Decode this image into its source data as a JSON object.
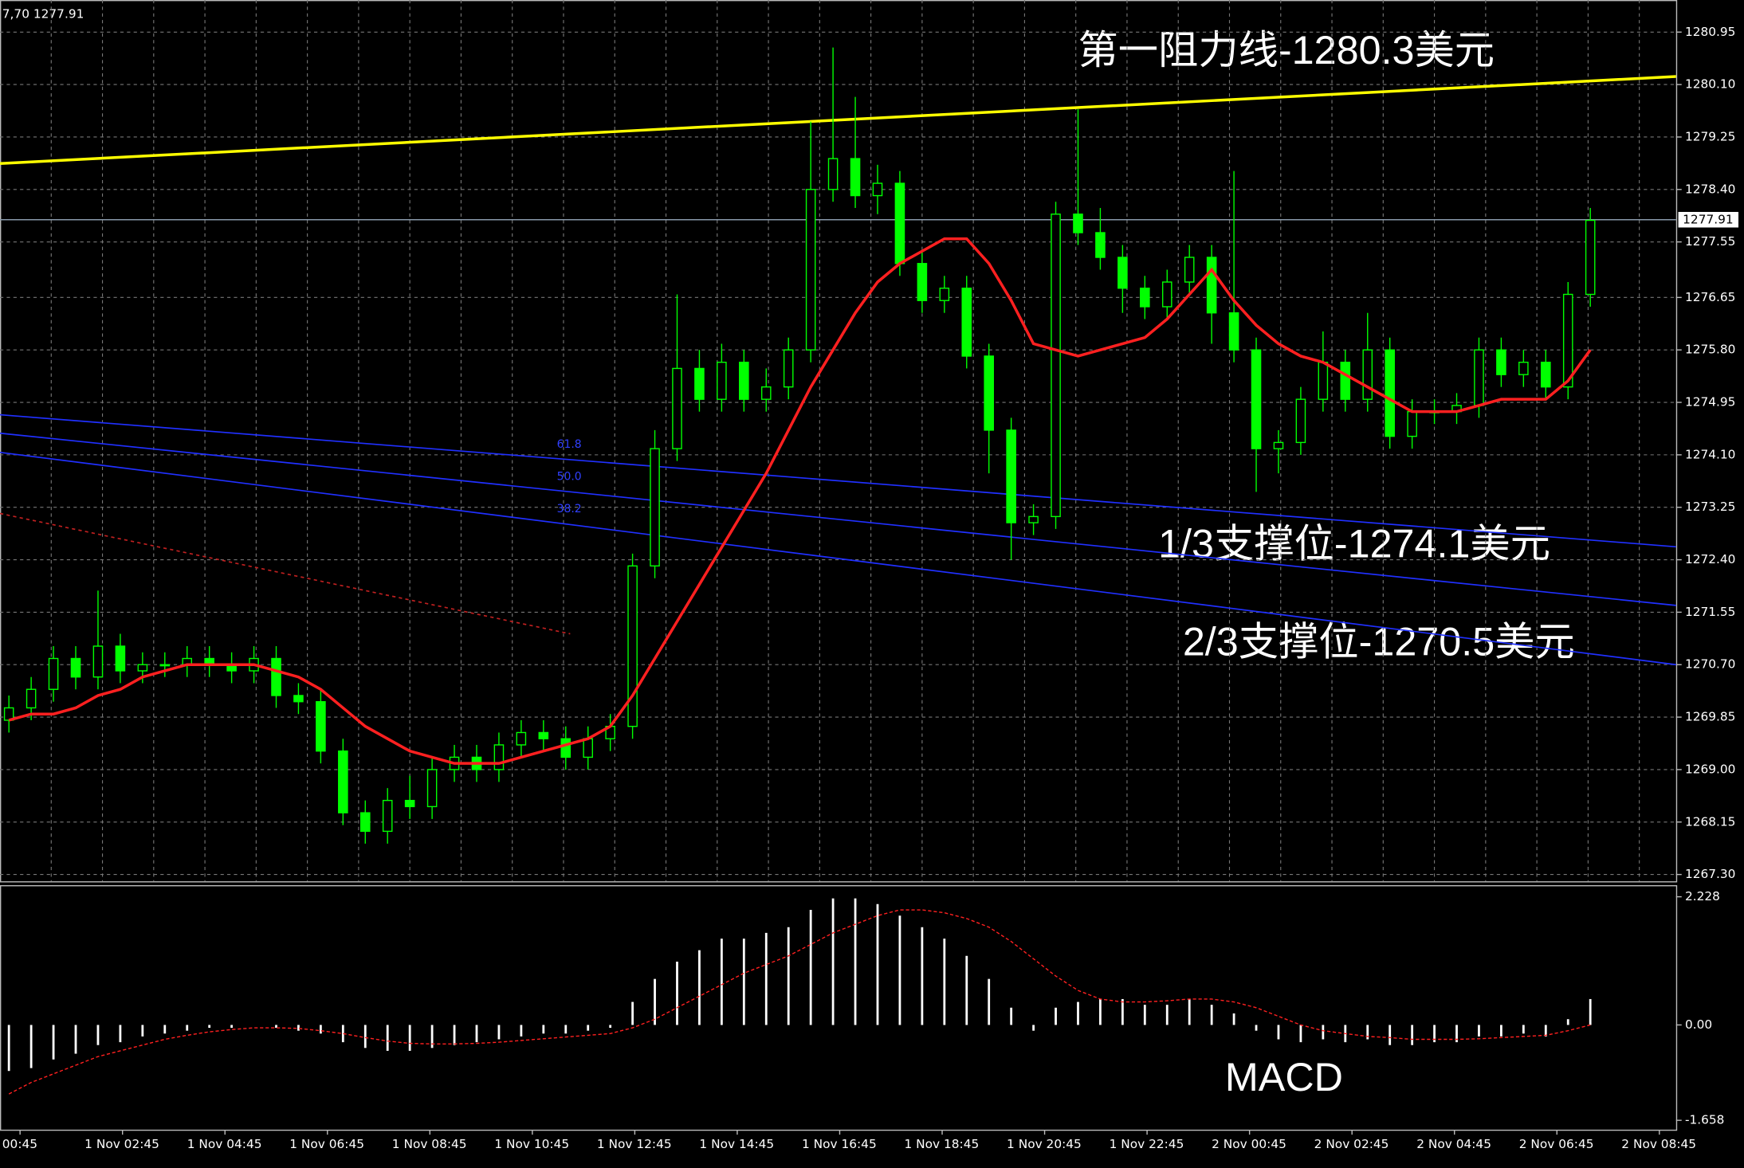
{
  "chart_data": {
    "type": "candlestick",
    "header": "7,70 1277.91",
    "last_price": {
      "value": 1277.91,
      "label": "1277.91"
    },
    "ylim": [
      1267.19,
      1281.47
    ],
    "yticks": [
      1280.95,
      {
        "value": 1280.1,
        "label": "1280.10"
      },
      1279.25,
      {
        "value": 1278.4,
        "label": "1278.40"
      },
      1277.55,
      1276.65,
      {
        "value": 1275.8,
        "label": "1275.80"
      },
      1274.95,
      {
        "value": 1274.1,
        "label": "1274.10"
      },
      1273.25,
      {
        "value": 1272.4,
        "label": "1272.40"
      },
      1271.55,
      {
        "value": 1270.7,
        "label": "1270.70"
      },
      1269.85,
      {
        "value": 1269,
        "label": "1269.00"
      },
      1268.15,
      {
        "value": 1267.3,
        "label": "1267.30"
      }
    ],
    "grid": true,
    "xlabels": [
      "00:45",
      "1 Nov 02:45",
      "1 Nov 04:45",
      "1 Nov 06:45",
      "1 Nov 08:45",
      "1 Nov 10:45",
      "1 Nov 12:45",
      "1 Nov 14:45",
      "1 Nov 16:45",
      "1 Nov 18:45",
      "1 Nov 20:45",
      "1 Nov 22:45",
      "2 Nov 00:45",
      "2 Nov 02:45",
      "2 Nov 04:45",
      "2 Nov 06:45",
      "2 Nov 08:45"
    ],
    "candle_color": "#00ff00",
    "open": [
      1269.8,
      1270.0,
      1270.3,
      1270.8,
      1270.5,
      1271.0,
      1270.6,
      1270.7,
      1270.7,
      1270.8,
      1270.7,
      1270.6,
      1270.8,
      1270.2,
      1270.1,
      1269.3,
      1268.3,
      1268.0,
      1268.5,
      1268.4,
      1269.0,
      1269.2,
      1269.0,
      1269.4,
      1269.6,
      1269.5,
      1269.2,
      1269.5,
      1269.7,
      1272.3,
      1274.2,
      1275.5,
      1275.0,
      1275.6,
      1275.0,
      1275.2,
      1275.8,
      1278.4,
      1278.9,
      1278.3,
      1278.5,
      1277.2,
      1276.6,
      1276.8,
      1275.7,
      1274.5,
      1273.0,
      1273.1,
      1278.0,
      1277.7,
      1277.3,
      1276.8,
      1276.5,
      1276.9,
      1277.3,
      1276.4,
      1275.8,
      1274.2,
      1274.3,
      1275.0,
      1275.6,
      1275.0,
      1275.8,
      1274.4,
      1274.8,
      1274.8,
      1274.9,
      1275.8,
      1275.4,
      1275.6,
      1275.2,
      1276.7
    ],
    "high": [
      1270.2,
      1270.5,
      1271.0,
      1271.0,
      1271.9,
      1271.2,
      1270.9,
      1270.9,
      1271.0,
      1271.0,
      1270.9,
      1271.0,
      1271.0,
      1270.4,
      1270.3,
      1269.5,
      1268.5,
      1268.7,
      1268.9,
      1269.2,
      1269.4,
      1269.4,
      1269.6,
      1269.8,
      1269.8,
      1269.7,
      1269.7,
      1269.9,
      1272.5,
      1274.5,
      1276.7,
      1275.8,
      1275.9,
      1275.8,
      1275.5,
      1276.0,
      1279.5,
      1280.7,
      1279.9,
      1278.8,
      1278.7,
      1277.4,
      1277.0,
      1277.0,
      1275.9,
      1274.7,
      1273.3,
      1278.2,
      1279.7,
      1278.1,
      1277.5,
      1277.0,
      1277.1,
      1277.5,
      1277.5,
      1278.7,
      1276.0,
      1274.5,
      1275.2,
      1276.1,
      1275.8,
      1276.4,
      1276.0,
      1275.0,
      1275.0,
      1275.1,
      1276.0,
      1276.0,
      1275.8,
      1275.8,
      1276.9,
      1278.1
    ],
    "low": [
      1269.6,
      1269.8,
      1270.1,
      1270.3,
      1270.3,
      1270.4,
      1270.4,
      1270.5,
      1270.5,
      1270.5,
      1270.4,
      1270.4,
      1270.0,
      1269.9,
      1269.1,
      1268.1,
      1267.8,
      1267.8,
      1268.2,
      1268.2,
      1268.8,
      1268.8,
      1268.8,
      1269.2,
      1269.3,
      1269.0,
      1269.0,
      1269.3,
      1269.5,
      1272.1,
      1274.0,
      1274.8,
      1274.8,
      1274.8,
      1274.8,
      1275.0,
      1275.6,
      1278.2,
      1278.1,
      1278.0,
      1277.0,
      1276.4,
      1276.4,
      1275.5,
      1273.8,
      1272.4,
      1272.8,
      1272.9,
      1277.5,
      1277.1,
      1276.4,
      1276.3,
      1276.3,
      1276.7,
      1275.9,
      1275.6,
      1273.5,
      1273.8,
      1274.1,
      1274.8,
      1274.8,
      1274.8,
      1274.2,
      1274.2,
      1274.6,
      1274.6,
      1274.7,
      1275.2,
      1275.2,
      1275.0,
      1275.0,
      1276.5
    ],
    "close": [
      1270.0,
      1270.3,
      1270.8,
      1270.5,
      1271.0,
      1270.6,
      1270.7,
      1270.7,
      1270.8,
      1270.7,
      1270.6,
      1270.8,
      1270.2,
      1270.1,
      1269.3,
      1268.3,
      1268.0,
      1268.5,
      1268.4,
      1269.0,
      1269.2,
      1269.0,
      1269.4,
      1269.6,
      1269.5,
      1269.2,
      1269.5,
      1269.7,
      1272.3,
      1274.2,
      1275.5,
      1275.0,
      1275.6,
      1275.0,
      1275.2,
      1275.8,
      1278.4,
      1278.9,
      1278.3,
      1278.5,
      1277.2,
      1276.6,
      1276.8,
      1275.7,
      1274.5,
      1273.0,
      1273.1,
      1278.0,
      1277.7,
      1277.3,
      1276.8,
      1276.5,
      1276.9,
      1277.3,
      1276.4,
      1275.8,
      1274.2,
      1274.3,
      1275.0,
      1275.6,
      1275.0,
      1275.8,
      1274.4,
      1274.8,
      1274.8,
      1274.9,
      1275.8,
      1275.4,
      1275.6,
      1275.2,
      1276.7,
      1277.9
    ],
    "ma": {
      "color": "#ff2020",
      "values": [
        1269.8,
        1269.9,
        1269.9,
        1270.0,
        1270.2,
        1270.3,
        1270.5,
        1270.6,
        1270.7,
        1270.7,
        1270.7,
        1270.7,
        1270.6,
        1270.5,
        1270.3,
        1270.0,
        1269.7,
        1269.5,
        1269.3,
        1269.2,
        1269.1,
        1269.1,
        1269.1,
        1269.2,
        1269.3,
        1269.4,
        1269.5,
        1269.7,
        1270.2,
        1270.8,
        1271.4,
        1272.0,
        1272.6,
        1273.2,
        1273.8,
        1274.5,
        1275.2,
        1275.8,
        1276.4,
        1276.9,
        1277.2,
        1277.4,
        1277.6,
        1277.6,
        1277.2,
        1276.6,
        1275.9,
        1275.8,
        1275.7,
        1275.8,
        1275.9,
        1276.0,
        1276.3,
        1276.7,
        1277.1,
        1276.6,
        1276.2,
        1275.9,
        1275.7,
        1275.6,
        1275.4,
        1275.2,
        1275.0,
        1274.8,
        1274.8,
        1274.8,
        1274.9,
        1275.0,
        1275.0,
        1275.0,
        1275.3,
        1275.8
      ]
    },
    "trend_lines": [
      {
        "color": "#ffff00",
        "values": [
          1278.82,
          1280.23
        ]
      },
      {
        "color": "#2030ff",
        "values": [
          1274.75,
          1272.61
        ]
      },
      {
        "color": "#2030ff",
        "values": [
          1274.45,
          1271.66
        ]
      },
      {
        "color": "#2030ff",
        "values": [
          1274.14,
          1270.7
        ]
      },
      {
        "color": "#c02020",
        "dashed": true,
        "values": [
          1273.15,
          1271.2
        ]
      }
    ],
    "fib_labels": [
      "61.8",
      "50.0",
      "38.2"
    ],
    "annotations": [
      "第一阻力线-1280.3美元",
      "1/3支撑位-1274.1美元",
      "2/3支撑位-1270.5美元"
    ],
    "macd": {
      "label": "MACD",
      "ylim": [
        -1.83,
        2.42
      ],
      "yticks": [
        2.228,
        {
          "value": 0,
          "label": "0.00"
        },
        -1.658
      ],
      "hist_color": "#ffffff",
      "signal_color": "#ff2020",
      "values": [
        -0.8,
        -0.75,
        -0.6,
        -0.5,
        -0.35,
        -0.3,
        -0.2,
        -0.15,
        -0.1,
        -0.05,
        -0.05,
        0.0,
        -0.05,
        -0.1,
        -0.15,
        -0.3,
        -0.4,
        -0.45,
        -0.45,
        -0.4,
        -0.35,
        -0.3,
        -0.25,
        -0.2,
        -0.15,
        -0.15,
        -0.1,
        -0.05,
        0.4,
        0.8,
        1.1,
        1.3,
        1.5,
        1.5,
        1.6,
        1.7,
        2.0,
        2.2,
        2.2,
        2.1,
        1.9,
        1.7,
        1.5,
        1.2,
        0.8,
        0.3,
        -0.1,
        0.3,
        0.4,
        0.45,
        0.45,
        0.35,
        0.35,
        0.45,
        0.35,
        0.2,
        -0.1,
        -0.25,
        -0.3,
        -0.25,
        -0.3,
        -0.25,
        -0.35,
        -0.35,
        -0.3,
        -0.3,
        -0.2,
        -0.2,
        -0.15,
        -0.2,
        0.1,
        0.45
      ],
      "signal": [
        -1.2,
        -1.0,
        -0.85,
        -0.7,
        -0.55,
        -0.45,
        -0.35,
        -0.25,
        -0.18,
        -0.12,
        -0.08,
        -0.05,
        -0.05,
        -0.06,
        -0.1,
        -0.15,
        -0.22,
        -0.28,
        -0.32,
        -0.33,
        -0.33,
        -0.32,
        -0.3,
        -0.27,
        -0.24,
        -0.21,
        -0.18,
        -0.15,
        -0.05,
        0.1,
        0.3,
        0.5,
        0.7,
        0.9,
        1.05,
        1.2,
        1.4,
        1.6,
        1.75,
        1.9,
        2.0,
        2.0,
        1.95,
        1.85,
        1.7,
        1.45,
        1.15,
        0.85,
        0.6,
        0.45,
        0.4,
        0.4,
        0.42,
        0.45,
        0.45,
        0.4,
        0.3,
        0.15,
        0.0,
        -0.1,
        -0.15,
        -0.2,
        -0.22,
        -0.25,
        -0.25,
        -0.25,
        -0.24,
        -0.22,
        -0.2,
        -0.18,
        -0.1,
        0.0
      ]
    }
  }
}
